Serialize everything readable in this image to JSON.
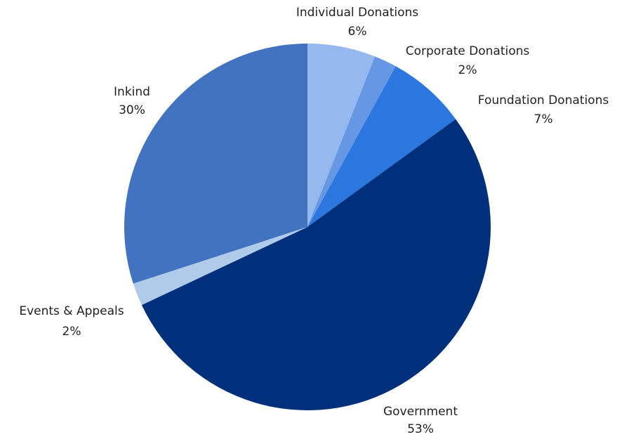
{
  "chart_data": {
    "type": "pie",
    "title": "",
    "slices": [
      {
        "label": "Individual Donations",
        "percent_label": "6%",
        "value": 6,
        "color": "#95b8ee"
      },
      {
        "label": "Corporate Donations",
        "percent_label": "2%",
        "value": 2,
        "color": "#6697e4"
      },
      {
        "label": "Foundation Donations",
        "percent_label": "7%",
        "value": 7,
        "color": "#2c76e0"
      },
      {
        "label": "Government",
        "percent_label": "53%",
        "value": 53,
        "color": "#00307b"
      },
      {
        "label": "Events & Appeals",
        "percent_label": "2%",
        "value": 2,
        "color": "#b0cbea"
      },
      {
        "label": "Inkind",
        "percent_label": "30%",
        "value": 30,
        "color": "#4173c1"
      }
    ],
    "start": "top",
    "direction": "clockwise"
  }
}
